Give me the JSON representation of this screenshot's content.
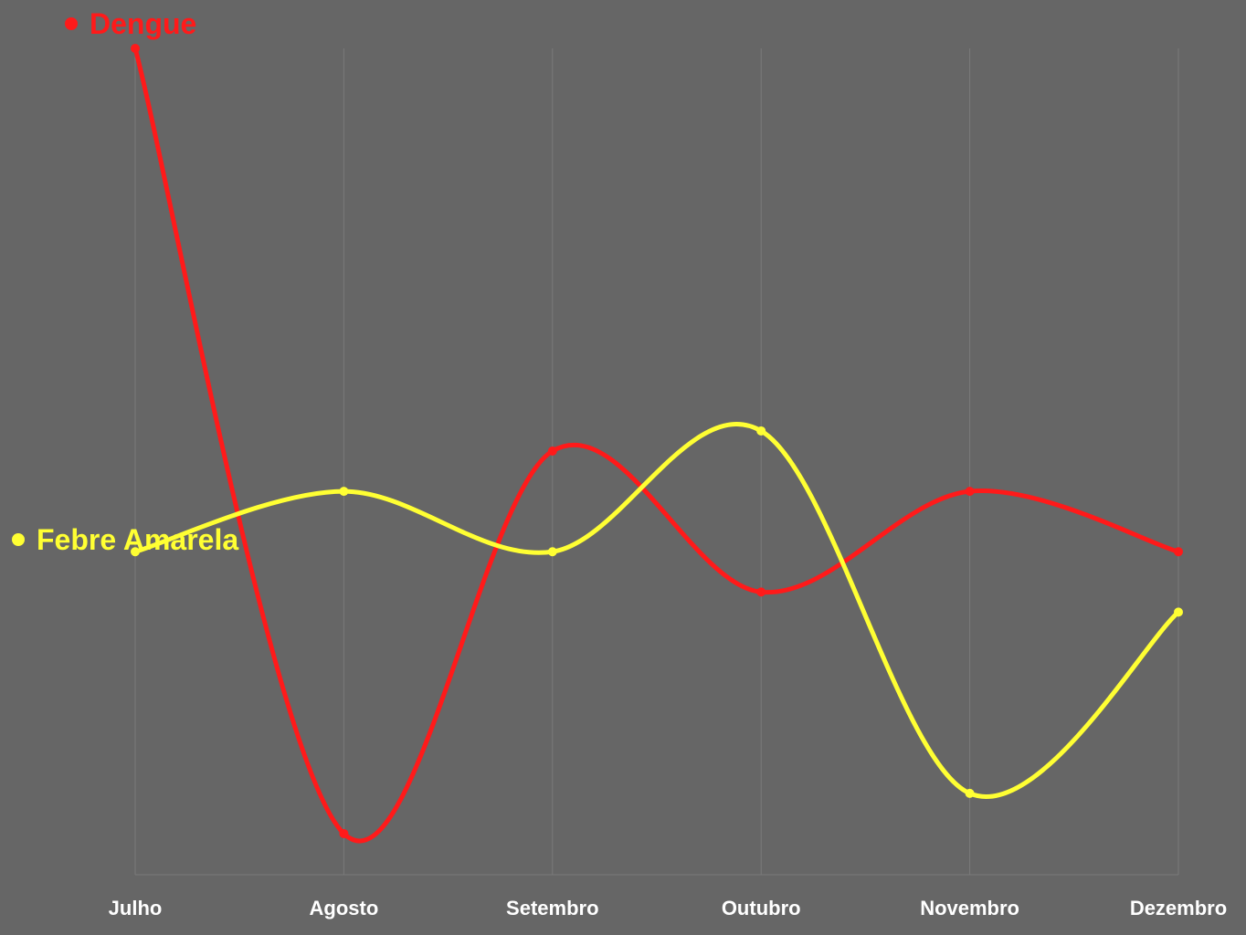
{
  "chart_data": {
    "type": "line",
    "title": "",
    "xlabel": "",
    "ylabel": "",
    "categories": [
      "Julho",
      "Agosto",
      "Setembro",
      "Outubro",
      "Novembro",
      "Dezembro"
    ],
    "ylim": [
      0,
      40
    ],
    "grid": "vertical",
    "legend": "inline-left",
    "series": [
      {
        "name": "Dengue",
        "color": "#ff1a1a",
        "values": [
          40,
          1,
          20,
          13,
          18,
          15
        ]
      },
      {
        "name": "Febre Amarela",
        "color": "#ffff33",
        "values": [
          15,
          18,
          15,
          21,
          3,
          12
        ]
      }
    ]
  }
}
